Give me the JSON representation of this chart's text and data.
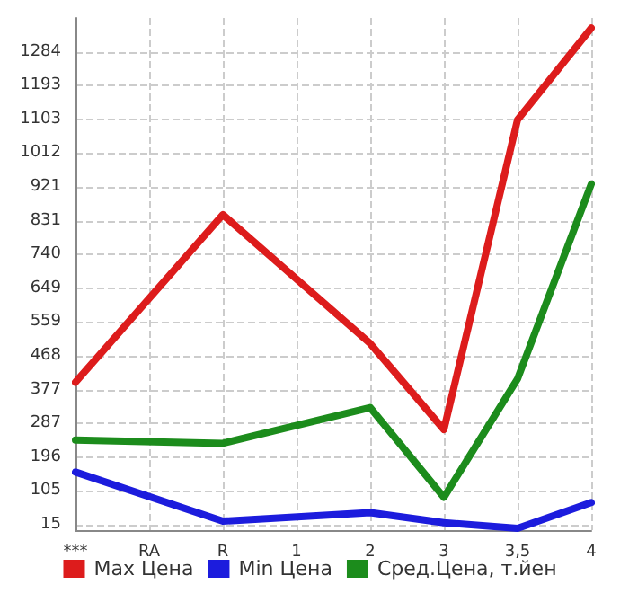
{
  "chart_data": {
    "type": "line",
    "categories": [
      "***",
      "RA",
      "R",
      "1",
      "2",
      "3",
      "3,5",
      "4"
    ],
    "series": [
      {
        "name": "Max Цена",
        "color": "#dd1c1c",
        "values": [
          397,
          null,
          847,
          null,
          501,
          270,
          1102,
          1348
        ]
      },
      {
        "name": "Min Цена",
        "color": "#1c1cdd",
        "values": [
          156,
          null,
          24,
          null,
          47,
          20,
          5,
          74
        ]
      },
      {
        "name": "Сред.Цена, т.йен",
        "color": "#1c8c1c",
        "values": [
          242,
          null,
          233,
          null,
          329,
          88,
          406,
          929
        ]
      }
    ],
    "ylim": [
      0,
      1375
    ],
    "yticks": [
      15,
      105,
      196,
      287,
      377,
      468,
      559,
      649,
      740,
      831,
      921,
      1012,
      1103,
      1193,
      1284
    ],
    "grid": true,
    "legend": "bottom",
    "marker": "none",
    "line_style": "solid"
  }
}
